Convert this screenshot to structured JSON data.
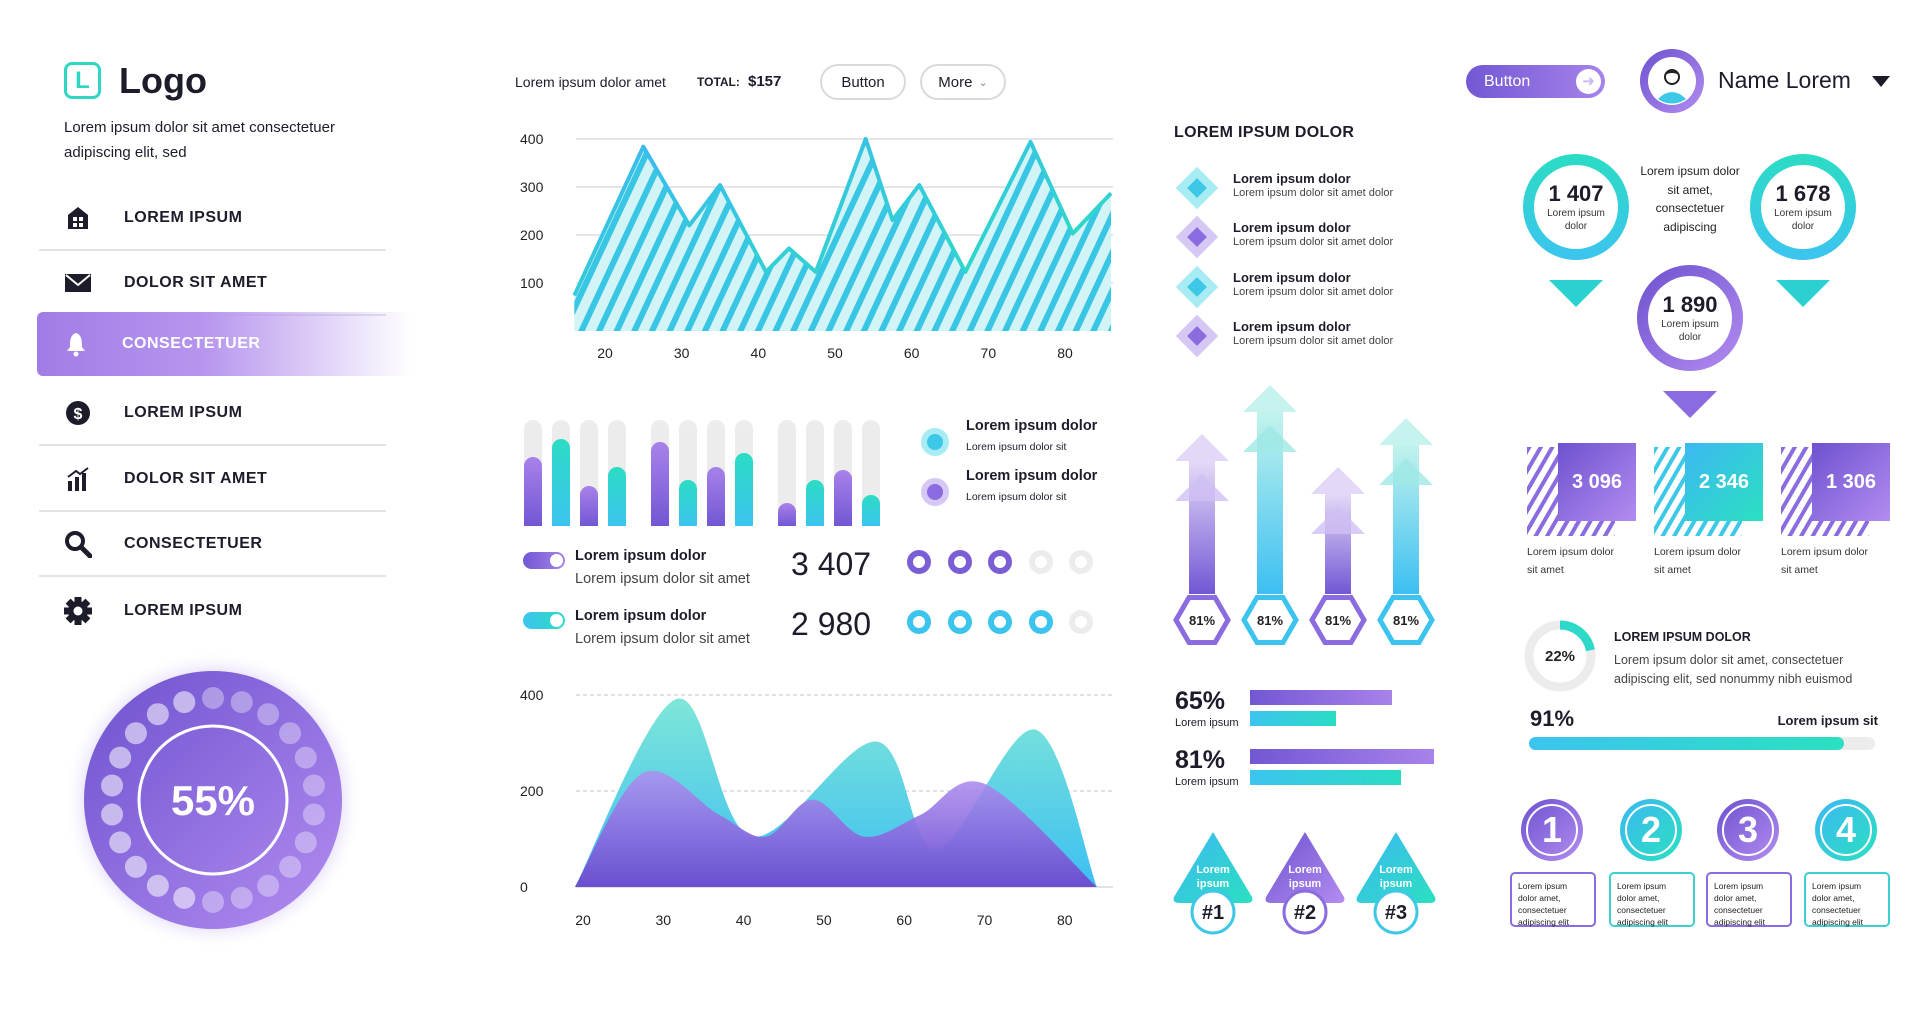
{
  "brand": {
    "logo_letter": "L",
    "name": "Logo",
    "description_line1": "Lorem ipsum dolor sit amet consectetuer",
    "description_line2": "adipiscing elit, sed"
  },
  "nav": [
    {
      "label": "LOREM IPSUM",
      "icon": "house-icon",
      "active": false
    },
    {
      "label": "DOLOR SIT AMET",
      "icon": "envelope-icon",
      "active": false
    },
    {
      "label": "CONSECTETUER",
      "icon": "bell-icon",
      "active": true
    },
    {
      "label": "LOREM IPSUM",
      "icon": "dollar-icon",
      "active": false
    },
    {
      "label": "DOLOR SIT AMET",
      "icon": "bar-chart-icon",
      "active": false
    },
    {
      "label": "CONSECTETUER",
      "icon": "search-icon",
      "active": false
    },
    {
      "label": "LOREM IPSUM",
      "icon": "gear-icon",
      "active": false
    }
  ],
  "gauge": {
    "label": "55%",
    "value": 55
  },
  "toolbar": {
    "caption": "Lorem ipsum dolor amet",
    "total_label": "TOTAL:",
    "total_value": "$157",
    "button": "Button",
    "more": "More"
  },
  "header": {
    "button": "Button",
    "user_name": "Name Lorem"
  },
  "colors": {
    "purple": "#7b5ed6",
    "purple_light": "#a784ea",
    "teal": "#2bd9c6",
    "cyan": "#3cc4ef",
    "gray": "#ececec"
  },
  "chart_data": [
    {
      "type": "area",
      "style": "hatched",
      "x": [
        16,
        25,
        31,
        35,
        41,
        44,
        47.5,
        54,
        57.5,
        61,
        67,
        75.5,
        81,
        86
      ],
      "values": [
        74,
        384,
        220,
        304,
        123,
        172,
        123,
        400,
        231,
        304,
        123,
        394,
        203,
        287
      ],
      "ylim": [
        0,
        400
      ],
      "xlim": [
        16,
        86
      ],
      "yticks": [
        100,
        200,
        300,
        400
      ],
      "xticks": [
        20,
        30,
        40,
        50,
        60,
        70,
        80
      ],
      "grid": true
    },
    {
      "type": "bar",
      "groups": [
        [
          0.65,
          0.82,
          0.38,
          0.56
        ],
        [
          0.79,
          0.43,
          0.56,
          0.69
        ],
        [
          0.22,
          0.43,
          0.53,
          0.29
        ]
      ],
      "ylim": [
        0,
        1
      ],
      "legend": [
        {
          "title": "Lorem ipsum dolor",
          "subtitle": "Lorem ipsum dolor sit",
          "color": "teal"
        },
        {
          "title": "Lorem ipsum dolor",
          "subtitle": "Lorem ipsum dolor sit",
          "color": "purple"
        }
      ]
    },
    {
      "type": "area",
      "ylim": [
        0,
        400
      ],
      "xlim": [
        19,
        84
      ],
      "yticks": [
        0,
        200,
        400
      ],
      "xticks": [
        20,
        30,
        40,
        50,
        60,
        70,
        80
      ],
      "series": [
        {
          "color": "teal",
          "x": [
            19,
            31.7,
            41,
            56.5,
            64,
            76.3,
            84
          ],
          "values": [
            0,
            392,
            105,
            303,
            79,
            328,
            0
          ]
        },
        {
          "color": "purple",
          "x": [
            19,
            27.5,
            37,
            42.8,
            48.6,
            55,
            62,
            70,
            84
          ],
          "values": [
            0,
            238,
            150,
            105,
            182,
            105,
            150,
            215,
            0
          ]
        }
      ]
    }
  ],
  "toggles": [
    {
      "title": "Lorem ipsum dolor",
      "subtitle": "Lorem ipsum dolor sit amet",
      "value": "3 407",
      "filled": 3,
      "total": 5,
      "color": "purple"
    },
    {
      "title": "Lorem ipsum dolor",
      "subtitle": "Lorem ipsum dolor sit amet",
      "value": "2 980",
      "filled": 4,
      "total": 5,
      "color": "cyan"
    }
  ],
  "list": {
    "title": "LOREM IPSUM DOLOR",
    "items": [
      {
        "title": "Lorem ipsum dolor",
        "subtitle": "Lorem ipsum dolor sit amet dolor",
        "color": "teal"
      },
      {
        "title": "Lorem ipsum dolor",
        "subtitle": "Lorem ipsum dolor sit amet dolor",
        "color": "purple"
      },
      {
        "title": "Lorem ipsum dolor",
        "subtitle": "Lorem ipsum dolor sit amet dolor",
        "color": "teal"
      },
      {
        "title": "Lorem ipsum dolor",
        "subtitle": "Lorem ipsum dolor sit amet dolor",
        "color": "purple"
      }
    ]
  },
  "arrows": [
    {
      "label": "81%",
      "color": "purple"
    },
    {
      "label": "81%",
      "color": "cyan"
    },
    {
      "label": "81%",
      "color": "purple"
    },
    {
      "label": "81%",
      "color": "cyan"
    }
  ],
  "percent_bars": [
    {
      "label": "65%",
      "sub": "Lorem ipsum",
      "purple": 0.77,
      "teal": 0.47
    },
    {
      "label": "81%",
      "sub": "Lorem ipsum",
      "purple": 1.0,
      "teal": 0.82
    }
  ],
  "ranks": [
    {
      "text": "Lorem ipsum",
      "badge": "#1",
      "color": "teal"
    },
    {
      "text": "Lorem ipsum",
      "badge": "#2",
      "color": "purple"
    },
    {
      "text": "Lorem ipsum",
      "badge": "#3",
      "color": "teal"
    }
  ],
  "pins": [
    {
      "value": "1 407",
      "label": "Lorem ipsum dolor"
    },
    {
      "value": "1 678",
      "label": "Lorem ipsum dolor"
    },
    {
      "value": "1 890",
      "label": "Lorem ipsum dolor"
    }
  ],
  "pin_caption": "Lorem ipsum dolor sit amet, consectetuer adipiscing",
  "stats": [
    {
      "value": "3 096",
      "label1": "Lorem ipsum dolor",
      "label2": "sit amet"
    },
    {
      "value": "2 346",
      "label1": "Lorem ipsum dolor",
      "label2": "sit amet"
    },
    {
      "value": "1 306",
      "label1": "Lorem ipsum dolor",
      "label2": "sit amet"
    }
  ],
  "donut": {
    "label": "22%",
    "value": 22,
    "title": "LOREM IPSUM DOLOR",
    "text1": "Lorem ipsum dolor sit amet, consectetuer",
    "text2": "adipiscing elit, sed nonummy nibh euismod"
  },
  "progress": {
    "label": "91%",
    "value": 91,
    "caption": "Lorem ipsum sit"
  },
  "steps": [
    {
      "n": "1",
      "text": "Lorem ipsum dolor amet, consectetuer adipiscing elit"
    },
    {
      "n": "2",
      "text": "Lorem ipsum dolor amet, consectetuer adipiscing elit"
    },
    {
      "n": "3",
      "text": "Lorem ipsum dolor amet, consectetuer adipiscing elit"
    },
    {
      "n": "4",
      "text": "Lorem ipsum dolor amet, consectetuer adipiscing elit"
    }
  ]
}
